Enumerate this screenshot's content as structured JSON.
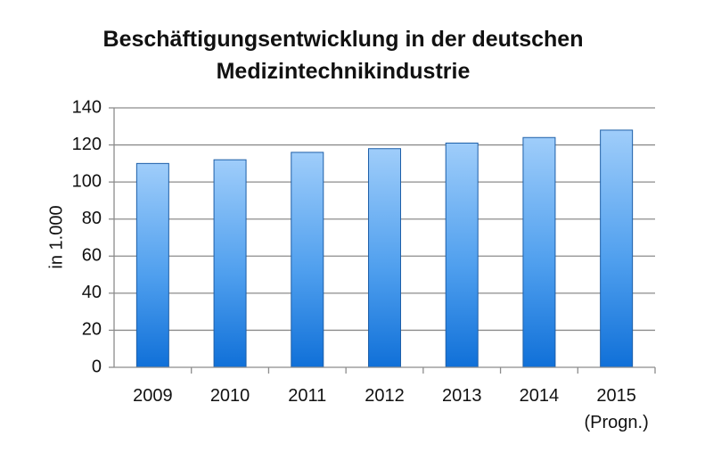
{
  "chart_data": {
    "type": "bar",
    "title_lines": [
      "Beschäftigungsentwicklung in der deutschen",
      "Medizintechnikindustrie"
    ],
    "ylabel": "in 1.000",
    "xlabel": "",
    "categories": [
      {
        "label": "2009",
        "sublabel": ""
      },
      {
        "label": "2010",
        "sublabel": ""
      },
      {
        "label": "2011",
        "sublabel": ""
      },
      {
        "label": "2012",
        "sublabel": ""
      },
      {
        "label": "2013",
        "sublabel": ""
      },
      {
        "label": "2014",
        "sublabel": ""
      },
      {
        "label": "2015",
        "sublabel": "(Progn.)"
      }
    ],
    "values": [
      110,
      112,
      116,
      118,
      121,
      124,
      128
    ],
    "ylim": [
      0,
      140
    ],
    "yticks": [
      0,
      20,
      40,
      60,
      80,
      100,
      120,
      140
    ],
    "grid": true,
    "legend": "none",
    "colors": {
      "bar_top": "#9fcdfa",
      "bar_mid": "#4f9fee",
      "bar_bottom": "#1070d8",
      "bar_edge": "#1e5fa8",
      "grid": "#8c8c8c",
      "axis": "#8c8c8c"
    }
  }
}
